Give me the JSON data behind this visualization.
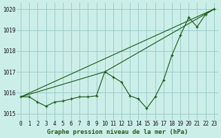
{
  "title": "Graphe pression niveau de la mer (hPa)",
  "bg_color": "#cceee8",
  "grid_color": "#99cccc",
  "line_color": "#1a5c1a",
  "xlim": [
    -0.5,
    23.5
  ],
  "ylim": [
    1014.7,
    1020.3
  ],
  "yticks": [
    1015,
    1016,
    1017,
    1018,
    1019,
    1020
  ],
  "xticks": [
    0,
    1,
    2,
    3,
    4,
    5,
    6,
    7,
    8,
    9,
    10,
    11,
    12,
    13,
    14,
    15,
    16,
    17,
    18,
    19,
    20,
    21,
    22,
    23
  ],
  "series_main": {
    "x": [
      0,
      1,
      2,
      3,
      4,
      5,
      6,
      7,
      8,
      9,
      10,
      11,
      12,
      13,
      14,
      15,
      16,
      17,
      18,
      19,
      20,
      21,
      22,
      23
    ],
    "y": [
      1015.8,
      1015.8,
      1015.55,
      1015.35,
      1015.55,
      1015.6,
      1015.7,
      1015.8,
      1015.8,
      1015.85,
      1017.0,
      1016.75,
      1016.5,
      1015.85,
      1015.7,
      1015.25,
      1015.8,
      1016.6,
      1017.8,
      1018.75,
      1019.6,
      1019.15,
      1019.75,
      1020.0
    ]
  },
  "series_line1": {
    "x": [
      0,
      10,
      23
    ],
    "y": [
      1015.8,
      1017.0,
      1020.0
    ]
  },
  "series_line2": {
    "x": [
      0,
      23
    ],
    "y": [
      1015.8,
      1020.0
    ]
  },
  "xlabel_fontsize": 6.5,
  "tick_fontsize": 5.5
}
